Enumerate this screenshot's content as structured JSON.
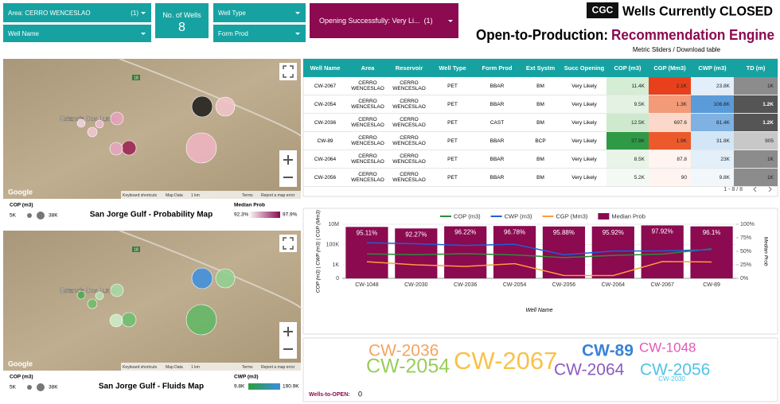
{
  "filters": {
    "area": "Area: CERRO WENCESLAO",
    "area_count": "(1)",
    "well_name": "Well Name",
    "wells_label": "No. of Wells",
    "wells_count": "8",
    "well_type": "Well Type",
    "form_prod": "Form Prod",
    "opening": "Opening Successfully: Very Li...",
    "opening_count": "(1)"
  },
  "header": {
    "logo": "CGC",
    "title": "Wells Currently CLOSED",
    "subtitle_a": "Open-to-Production:",
    "subtitle_b": "Recommendation Engine",
    "note": "Metric Sliders / Download table"
  },
  "maps": [
    {
      "title": "San Jorge Gulf - Probability Map",
      "place": "Estancia Dos Lunas",
      "road": "18",
      "google": "Google",
      "footer": [
        "Keyboard shortcuts",
        "Map Data",
        "1 km",
        "Terms",
        "Report a map error"
      ],
      "size_legend": "COP (m3)",
      "size_min": "5K",
      "size_max": "38K",
      "color_legend": "Median Prob",
      "color_min": "92.3%",
      "color_max": "97.9%",
      "bubble_colors": [
        "#1a1a1a",
        "#f2c4cc",
        "#f0b5c3",
        "#e9a3bd",
        "#9c1f53",
        "#e6a6bf",
        "#f2c7d2",
        "#f5d3dc",
        "#eebbcc"
      ],
      "gradient": [
        "#ffffff",
        "#8b0a50"
      ]
    },
    {
      "title": "San Jorge Gulf - Fluids Map",
      "place": "Estancia Dos Lunas",
      "road": "18",
      "google": "Google",
      "footer": [
        "Keyboard shortcuts",
        "Map Data",
        "1 km",
        "Terms",
        "Report a map error"
      ],
      "size_legend": "COP (m3)",
      "size_min": "5K",
      "size_max": "38K",
      "color_legend": "CWP (m3)",
      "color_min": "9.8K",
      "color_max": "190.9K",
      "bubble_colors": [
        "#3b8ee0",
        "#8fd18f",
        "#5fb865",
        "#a9dca4",
        "#6cc06e",
        "#cdeec9",
        "#6abf6a",
        "#4aa84e",
        "#b4e2ae"
      ],
      "gradient": [
        "#2e9e3e",
        "#3b8ee0"
      ]
    }
  ],
  "table": {
    "columns": [
      "Well Name",
      "Area",
      "Reservoir",
      "Well Type",
      "Form Prod",
      "Ext Systm",
      "Succ Opening",
      "COP (m3)",
      "CGP (Mm3)",
      "CWP (m3)",
      "TD (m)"
    ],
    "rows": [
      [
        "CW-2067",
        "CERRO WENCESLAO",
        "CERRO WENCESLAO",
        "PET",
        "BBAR",
        "BM",
        "Very Likely",
        "11.4K",
        "2.1K",
        "23.8K",
        "1K"
      ],
      [
        "CW-2054",
        "CERRO WENCESLAO",
        "CERRO WENCESLAO",
        "PET",
        "BBAR",
        "BM",
        "Very Likely",
        "9.5K",
        "1.3K",
        "106.8K",
        "1.2K"
      ],
      [
        "CW-2036",
        "CERRO WENCESLAO",
        "CERRO WENCESLAO",
        "PET",
        "CAST",
        "BM",
        "Very Likely",
        "12.5K",
        "697.6",
        "81.4K",
        "1.2K"
      ],
      [
        "CW-89",
        "CERRO WENCESLAO",
        "CERRO WENCESLAO",
        "PET",
        "BBAR",
        "BCP",
        "Very Likely",
        "37.9K",
        "1.9K",
        "31.8K",
        "905"
      ],
      [
        "CW-2064",
        "CERRO WENCESLAO",
        "CERRO WENCESLAO",
        "PET",
        "BBAR",
        "BM",
        "Very Likely",
        "8.5K",
        "87.8",
        "23K",
        "1K"
      ],
      [
        "CW-2056",
        "CERRO WENCESLAO",
        "CERRO WENCESLAO",
        "PET",
        "BBAR",
        "BM",
        "Very Likely",
        "5.2K",
        "90",
        "9.8K",
        "1K"
      ]
    ],
    "cell_colors": [
      [
        "#d5ecd5",
        "#e8401b",
        "#e2eef9",
        "#8c8c8c"
      ],
      [
        "#e3f2e3",
        "#f39a78",
        "#5b9bd9",
        "#555555"
      ],
      [
        "#cfe9cf",
        "#fbd8c9",
        "#7fb1e2",
        "#555555"
      ],
      [
        "#2f9a46",
        "#ec5a2c",
        "#d3e6f6",
        "#c8c8c8"
      ],
      [
        "#e8f4e8",
        "#fff4ef",
        "#e3eff9",
        "#8c8c8c"
      ],
      [
        "#f3f9f3",
        "#fff4ef",
        "#f2f7fc",
        "#8c8c8c"
      ]
    ],
    "pagination": "1 - 8 / 8"
  },
  "chart_data": {
    "type": "combo",
    "categories": [
      "CW-1048",
      "CW-2030",
      "CW-2036",
      "CW-2054",
      "CW-2056",
      "CW-2064",
      "CW-2067",
      "CW-89"
    ],
    "series": [
      {
        "name": "COP (m3)",
        "type": "line",
        "color": "#2e8b3a",
        "values": [
          12000,
          10000,
          12500,
          9500,
          5200,
          8500,
          11400,
          37900
        ]
      },
      {
        "name": "CWP (m3)",
        "type": "line",
        "color": "#1f5fd6",
        "values": [
          150000,
          120000,
          81400,
          106800,
          9800,
          23000,
          23800,
          31800
        ]
      },
      {
        "name": "CGP (Mm3)",
        "type": "line",
        "color": "#ff9a3c",
        "values": [
          2000,
          1000,
          697.6,
          1300,
          90,
          87.8,
          2100,
          1900
        ]
      },
      {
        "name": "Median Prob",
        "type": "bar",
        "axis": "y2",
        "color": "#8b0a50",
        "values": [
          95.11,
          92.27,
          96.22,
          96.78,
          95.88,
          95.92,
          97.92,
          96.1
        ],
        "value_labels": [
          "95.11%",
          "92.27%",
          "96.22%",
          "96.78%",
          "95.88%",
          "95.92%",
          "97.92%",
          "96.1%"
        ]
      }
    ],
    "log": true,
    "ylim": [
      0,
      10000000
    ],
    "yticks": [
      0,
      {
        "value": 1000,
        "label": "1K"
      },
      {
        "value": 100000,
        "label": "100K"
      },
      {
        "value": 10000000,
        "label": "10M"
      }
    ],
    "y2lim": [
      0,
      100
    ],
    "y2ticks": [
      {
        "value": 0,
        "label": "0%"
      },
      {
        "value": 25,
        "label": "25%"
      },
      {
        "value": 50,
        "label": "50%"
      },
      {
        "value": 75,
        "label": "75%"
      },
      {
        "value": 100,
        "label": "100%"
      }
    ],
    "grid": true,
    "xlabel": "Well Name",
    "ylabel": "COP (m3) | CWP (m3) | CGP (Mm3)",
    "y2label": "Median Prob"
  },
  "word_cloud": {
    "words": [
      {
        "text": "CW-2036",
        "color": "#f4a460"
      },
      {
        "text": "CW-2054",
        "color": "#9acd5a"
      },
      {
        "text": "CW-2067",
        "color": "#f9c14a"
      },
      {
        "text": "CW-89",
        "color": "#3b82d6"
      },
      {
        "text": "CW-1048",
        "color": "#e05ab8"
      },
      {
        "text": "CW-2064",
        "color": "#8a5cc0"
      },
      {
        "text": "CW-2056",
        "color": "#52c3e8"
      },
      {
        "text": "CW-2030",
        "color": "#52c3e8"
      }
    ],
    "label": "Wells-to-OPEN:",
    "count": "0"
  }
}
